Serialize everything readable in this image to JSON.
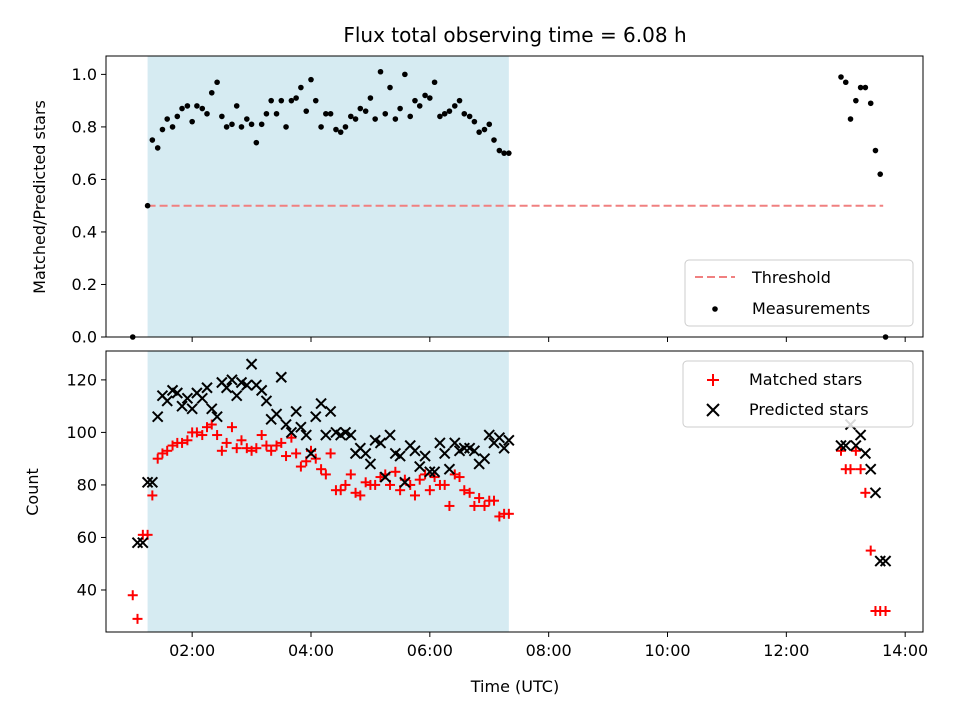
{
  "chart_data": [
    {
      "type": "scatter",
      "title": "Flux total observing time = 6.08 h",
      "xlabel": "",
      "ylabel": "Matched/Predicted stars",
      "x_unit": "hours UTC",
      "xlim": [
        0.55,
        14.3
      ],
      "ylim": [
        0,
        1.07
      ],
      "yticks": [
        0.0,
        0.2,
        0.4,
        0.6,
        0.8,
        1.0
      ],
      "ytick_labels": [
        "0.0",
        "0.2",
        "0.4",
        "0.6",
        "0.8",
        "1.0"
      ],
      "grid": false,
      "legend_position": "lower right",
      "shaded_interval": {
        "x": [
          1.25,
          7.33
        ],
        "color": "#add8e6"
      },
      "threshold": {
        "name": "Threshold",
        "y": 0.5,
        "x": [
          1.25,
          13.63
        ],
        "color": "#f08080"
      },
      "series": [
        {
          "name": "Measurements",
          "color": "#000000",
          "marker": "dot",
          "x": [
            1.0,
            1.25,
            1.33,
            1.42,
            1.5,
            1.58,
            1.67,
            1.75,
            1.83,
            1.92,
            2.0,
            2.08,
            2.17,
            2.25,
            2.33,
            2.42,
            2.5,
            2.58,
            2.67,
            2.75,
            2.83,
            2.92,
            3.0,
            3.08,
            3.17,
            3.25,
            3.33,
            3.42,
            3.5,
            3.58,
            3.67,
            3.75,
            3.83,
            3.92,
            4.0,
            4.08,
            4.17,
            4.25,
            4.33,
            4.42,
            4.5,
            4.58,
            4.67,
            4.75,
            4.83,
            4.92,
            5.0,
            5.08,
            5.17,
            5.25,
            5.33,
            5.42,
            5.5,
            5.58,
            5.67,
            5.75,
            5.83,
            5.92,
            6.0,
            6.08,
            6.17,
            6.25,
            6.33,
            6.42,
            6.5,
            6.58,
            6.67,
            6.75,
            6.83,
            6.92,
            7.0,
            7.08,
            7.17,
            7.25,
            7.33,
            12.92,
            13.0,
            13.08,
            13.17,
            13.25,
            13.33,
            13.42,
            13.5,
            13.58,
            13.67
          ],
          "y": [
            0.0,
            0.5,
            0.75,
            0.72,
            0.79,
            0.83,
            0.8,
            0.84,
            0.87,
            0.88,
            0.82,
            0.88,
            0.87,
            0.85,
            0.93,
            0.97,
            0.84,
            0.8,
            0.81,
            0.88,
            0.8,
            0.83,
            0.81,
            0.74,
            0.81,
            0.85,
            0.9,
            0.85,
            0.9,
            0.8,
            0.9,
            0.91,
            0.95,
            0.86,
            0.98,
            0.9,
            0.8,
            0.85,
            0.85,
            0.79,
            0.78,
            0.8,
            0.84,
            0.83,
            0.87,
            0.86,
            0.91,
            0.83,
            1.01,
            0.85,
            0.95,
            0.83,
            0.87,
            1.0,
            0.84,
            0.9,
            0.88,
            0.92,
            0.91,
            0.97,
            0.84,
            0.85,
            0.86,
            0.88,
            0.9,
            0.85,
            0.84,
            0.82,
            0.78,
            0.79,
            0.81,
            0.75,
            0.71,
            0.7,
            0.7,
            0.99,
            0.97,
            0.83,
            0.9,
            0.95,
            0.95,
            0.89,
            0.71,
            0.62,
            0.0
          ]
        }
      ]
    },
    {
      "type": "scatter",
      "title": "",
      "xlabel": "Time (UTC)",
      "ylabel": "Count",
      "x_unit": "hours UTC",
      "xlim": [
        0.55,
        14.3
      ],
      "ylim": [
        24,
        131
      ],
      "xticks": [
        2,
        4,
        6,
        8,
        10,
        12,
        14
      ],
      "xtick_labels": [
        "02:00",
        "04:00",
        "06:00",
        "08:00",
        "10:00",
        "12:00",
        "14:00"
      ],
      "yticks": [
        40,
        60,
        80,
        100,
        120
      ],
      "ytick_labels": [
        "40",
        "60",
        "80",
        "100",
        "120"
      ],
      "grid": false,
      "legend_position": "upper right",
      "shaded_interval": {
        "x": [
          1.25,
          7.33
        ],
        "color": "#add8e6"
      },
      "series": [
        {
          "name": "Matched stars",
          "color": "#ff0000",
          "marker": "plus",
          "x": [
            1.0,
            1.08,
            1.17,
            1.25,
            1.33,
            1.42,
            1.5,
            1.58,
            1.67,
            1.75,
            1.83,
            1.92,
            2.0,
            2.08,
            2.17,
            2.25,
            2.33,
            2.42,
            2.5,
            2.58,
            2.67,
            2.75,
            2.83,
            2.92,
            3.0,
            3.08,
            3.17,
            3.25,
            3.33,
            3.42,
            3.5,
            3.58,
            3.67,
            3.75,
            3.83,
            3.92,
            4.0,
            4.08,
            4.17,
            4.25,
            4.33,
            4.42,
            4.5,
            4.58,
            4.67,
            4.75,
            4.83,
            4.92,
            5.0,
            5.08,
            5.17,
            5.25,
            5.33,
            5.42,
            5.5,
            5.58,
            5.67,
            5.75,
            5.83,
            5.92,
            6.0,
            6.08,
            6.17,
            6.25,
            6.33,
            6.42,
            6.5,
            6.58,
            6.67,
            6.75,
            6.83,
            6.92,
            7.0,
            7.08,
            7.17,
            7.25,
            7.33,
            12.92,
            13.0,
            13.08,
            13.17,
            13.25,
            13.33,
            13.42,
            13.5,
            13.58,
            13.67
          ],
          "y": [
            38,
            29,
            61,
            61,
            76,
            90,
            92,
            93,
            95,
            96,
            96,
            97,
            100,
            100,
            99,
            102,
            103,
            99,
            93,
            96,
            102,
            94,
            97,
            94,
            93,
            94,
            99,
            95,
            93,
            95,
            96,
            91,
            98,
            92,
            87,
            89,
            93,
            90,
            86,
            84,
            92,
            78,
            78,
            80,
            84,
            77,
            76,
            81,
            80,
            80,
            83,
            84,
            80,
            85,
            78,
            82,
            80,
            76,
            82,
            84,
            78,
            83,
            80,
            80,
            72,
            84,
            83,
            78,
            77,
            72,
            75,
            72,
            74,
            74,
            68,
            69,
            69,
            93,
            86,
            86,
            93,
            86,
            77,
            55,
            32,
            32,
            32
          ],
          "note": ""
        },
        {
          "name": "Predicted stars",
          "color": "#000000",
          "marker": "x",
          "x": [
            1.08,
            1.17,
            1.25,
            1.33,
            1.42,
            1.5,
            1.58,
            1.67,
            1.75,
            1.83,
            1.92,
            2.0,
            2.08,
            2.17,
            2.25,
            2.33,
            2.42,
            2.5,
            2.58,
            2.67,
            2.75,
            2.83,
            2.92,
            3.0,
            3.08,
            3.17,
            3.25,
            3.33,
            3.42,
            3.5,
            3.58,
            3.67,
            3.75,
            3.83,
            3.92,
            4.0,
            4.08,
            4.17,
            4.25,
            4.33,
            4.42,
            4.5,
            4.58,
            4.67,
            4.75,
            4.83,
            4.92,
            5.0,
            5.08,
            5.17,
            5.25,
            5.33,
            5.42,
            5.5,
            5.58,
            5.67,
            5.75,
            5.83,
            5.92,
            6.0,
            6.08,
            6.17,
            6.25,
            6.33,
            6.42,
            6.5,
            6.58,
            6.67,
            6.75,
            6.83,
            6.92,
            7.0,
            7.08,
            7.17,
            7.25,
            7.33,
            12.92,
            13.0,
            13.08,
            13.17,
            13.25,
            13.33,
            13.42,
            13.5,
            13.58,
            13.67
          ],
          "y": [
            58,
            58,
            81,
            81,
            106,
            114,
            112,
            116,
            115,
            110,
            113,
            109,
            115,
            113,
            117,
            109,
            106,
            119,
            117,
            120,
            114,
            119,
            118,
            126,
            118,
            116,
            112,
            105,
            107,
            121,
            103,
            100,
            108,
            102,
            99,
            92,
            106,
            111,
            99,
            108,
            100,
            99,
            100,
            99,
            92,
            94,
            92,
            88,
            97,
            96,
            83,
            99,
            92,
            91,
            81,
            95,
            93,
            87,
            91,
            85,
            85,
            96,
            92,
            86,
            96,
            93,
            94,
            94,
            93,
            88,
            90,
            99,
            96,
            98,
            94,
            97,
            95,
            95,
            103,
            95,
            99,
            92,
            86,
            77,
            51,
            51
          ]
        }
      ]
    }
  ]
}
